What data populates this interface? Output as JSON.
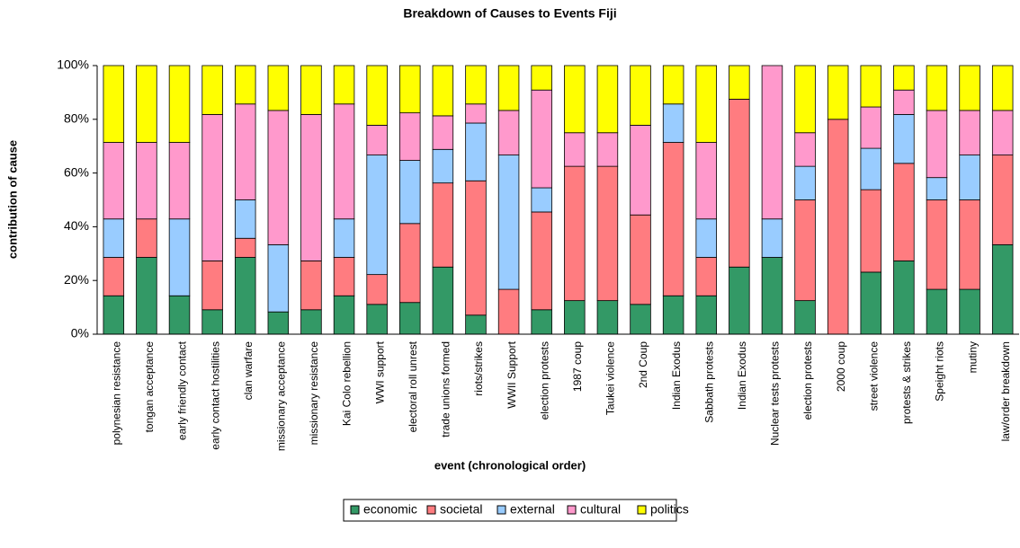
{
  "chart_data": {
    "type": "stacked_bar_100",
    "title": "Breakdown of Causes to Events Fiji",
    "x_label": "event (chronological order)",
    "y_label": "contribution of cause",
    "categories": [
      "polynesian resistance",
      "tongan acceptance",
      "early friendly contact",
      "early contact hostilities",
      "clan warfare",
      "missionary acceptance",
      "missionary resistance",
      "Kai Colo rebellion",
      "WWI support",
      "electoral roll unrest",
      "trade unions formed",
      "riots/strikes",
      "WWII Support",
      "election protests",
      "1987 coup",
      "Taukei violence",
      "2nd Coup",
      "Indian Exodus",
      "Sabbath protests",
      "Indian Exodus",
      "Nuclear tests protests",
      "election protests",
      "2000 coup",
      "street violence",
      "protests & strikes",
      "Speight riots",
      "mutiny",
      "law/order breakdown"
    ],
    "series": [
      {
        "name": "economic",
        "color": "#339966",
        "values": [
          14.3,
          28.6,
          14.3,
          9.1,
          28.6,
          8.3,
          9.1,
          14.3,
          11.1,
          11.8,
          25,
          7.1,
          0,
          9.1,
          12.5,
          12.5,
          11.1,
          14.3,
          14.3,
          25,
          28.6,
          12.5,
          0,
          23.1,
          27.3,
          16.7,
          16.7,
          33.3
        ]
      },
      {
        "name": "societal",
        "color": "#ff7c80",
        "values": [
          14.3,
          14.3,
          0,
          18.2,
          7.1,
          0,
          18.2,
          14.3,
          11.1,
          29.4,
          31.3,
          50,
          16.7,
          36.4,
          50,
          50,
          33.3,
          57.1,
          14.3,
          62.5,
          0,
          37.5,
          80,
          30.7,
          36.3,
          33.3,
          33.3,
          33.4
        ]
      },
      {
        "name": "external",
        "color": "#99ccff",
        "values": [
          14.3,
          0,
          28.6,
          0,
          14.3,
          25,
          0,
          14.3,
          44.5,
          23.5,
          12.5,
          21.5,
          50,
          9,
          0,
          0,
          0,
          14.3,
          14.3,
          0,
          14.3,
          12.5,
          0,
          15.4,
          18.2,
          8.3,
          16.7,
          0
        ]
      },
      {
        "name": "cultural",
        "color": "#ff99cc",
        "values": [
          28.5,
          28.5,
          28.5,
          54.5,
          35.7,
          50,
          54.5,
          42.8,
          11.1,
          17.7,
          12.5,
          7.1,
          16.6,
          36.4,
          12.5,
          12.5,
          33.4,
          0,
          28.5,
          0,
          57.1,
          12.5,
          0,
          15.4,
          9.1,
          25,
          16.6,
          16.6
        ]
      },
      {
        "name": "politics",
        "color": "#ffff00",
        "values": [
          28.6,
          28.6,
          28.6,
          18.2,
          14.3,
          16.7,
          18.2,
          14.3,
          22.2,
          17.6,
          18.7,
          14.3,
          16.7,
          9.1,
          25,
          25,
          22.2,
          14.3,
          28.6,
          12.5,
          0,
          25,
          20,
          15.4,
          9.1,
          16.7,
          16.7,
          16.7
        ]
      }
    ],
    "ylim": [
      0,
      100
    ],
    "yticks": [
      {
        "value": 0,
        "label": "0%"
      },
      {
        "value": 20,
        "label": "20%"
      },
      {
        "value": 40,
        "label": "40%"
      },
      {
        "value": 60,
        "label": "60%"
      },
      {
        "value": 80,
        "label": "80%"
      },
      {
        "value": 100,
        "label": "100%"
      }
    ],
    "legend": "bottom"
  }
}
